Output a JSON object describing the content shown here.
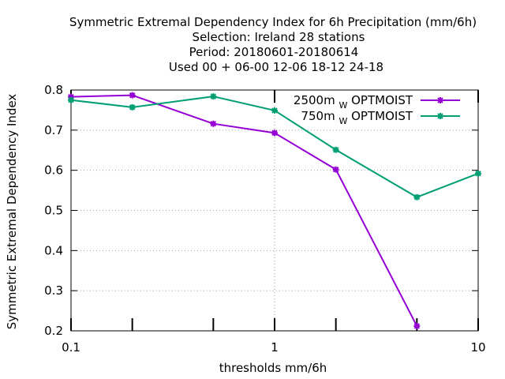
{
  "chart_data": {
    "type": "line",
    "title_lines": [
      "Symmetric Extremal Dependency Index  for 6h Precipitation (mm/6h)",
      "Selection: Ireland      28 stations",
      "Period: 20180601-20180614",
      "Used  00 + 06-00 12-06 18-12 24-18"
    ],
    "xlabel": "thresholds mm/6h",
    "ylabel": "Symmetric Extremal Dependency Index",
    "x_scale": "log",
    "xlim": [
      0.1,
      10
    ],
    "ylim": [
      0.2,
      0.8
    ],
    "x_ticks": [
      {
        "value": 0.1,
        "label": "0.1"
      },
      {
        "value": 1,
        "label": "1"
      },
      {
        "value": 10,
        "label": "10"
      }
    ],
    "y_ticks": [
      {
        "value": 0.2,
        "label": "0.2"
      },
      {
        "value": 0.3,
        "label": "0.3"
      },
      {
        "value": 0.4,
        "label": "0.4"
      },
      {
        "value": 0.5,
        "label": "0.5"
      },
      {
        "value": 0.6,
        "label": "0.6"
      },
      {
        "value": 0.7,
        "label": "0.7"
      },
      {
        "value": 0.8,
        "label": "0.8"
      }
    ],
    "grid": true,
    "legend_position": "top-right",
    "series": [
      {
        "name": "2500m",
        "name_sub": "W",
        "name_suffix": "OPTMOIST",
        "color": "#9400d3",
        "x": [
          0.1,
          0.2,
          0.5,
          1,
          2,
          5
        ],
        "y": [
          0.783,
          0.787,
          0.716,
          0.693,
          0.602,
          0.212
        ]
      },
      {
        "name": "750m",
        "name_sub": "W",
        "name_suffix": "OPTMOIST",
        "color": "#009e73",
        "x": [
          0.1,
          0.2,
          0.5,
          1,
          2,
          5,
          10
        ],
        "y": [
          0.775,
          0.757,
          0.784,
          0.749,
          0.651,
          0.533,
          0.592
        ]
      }
    ]
  }
}
